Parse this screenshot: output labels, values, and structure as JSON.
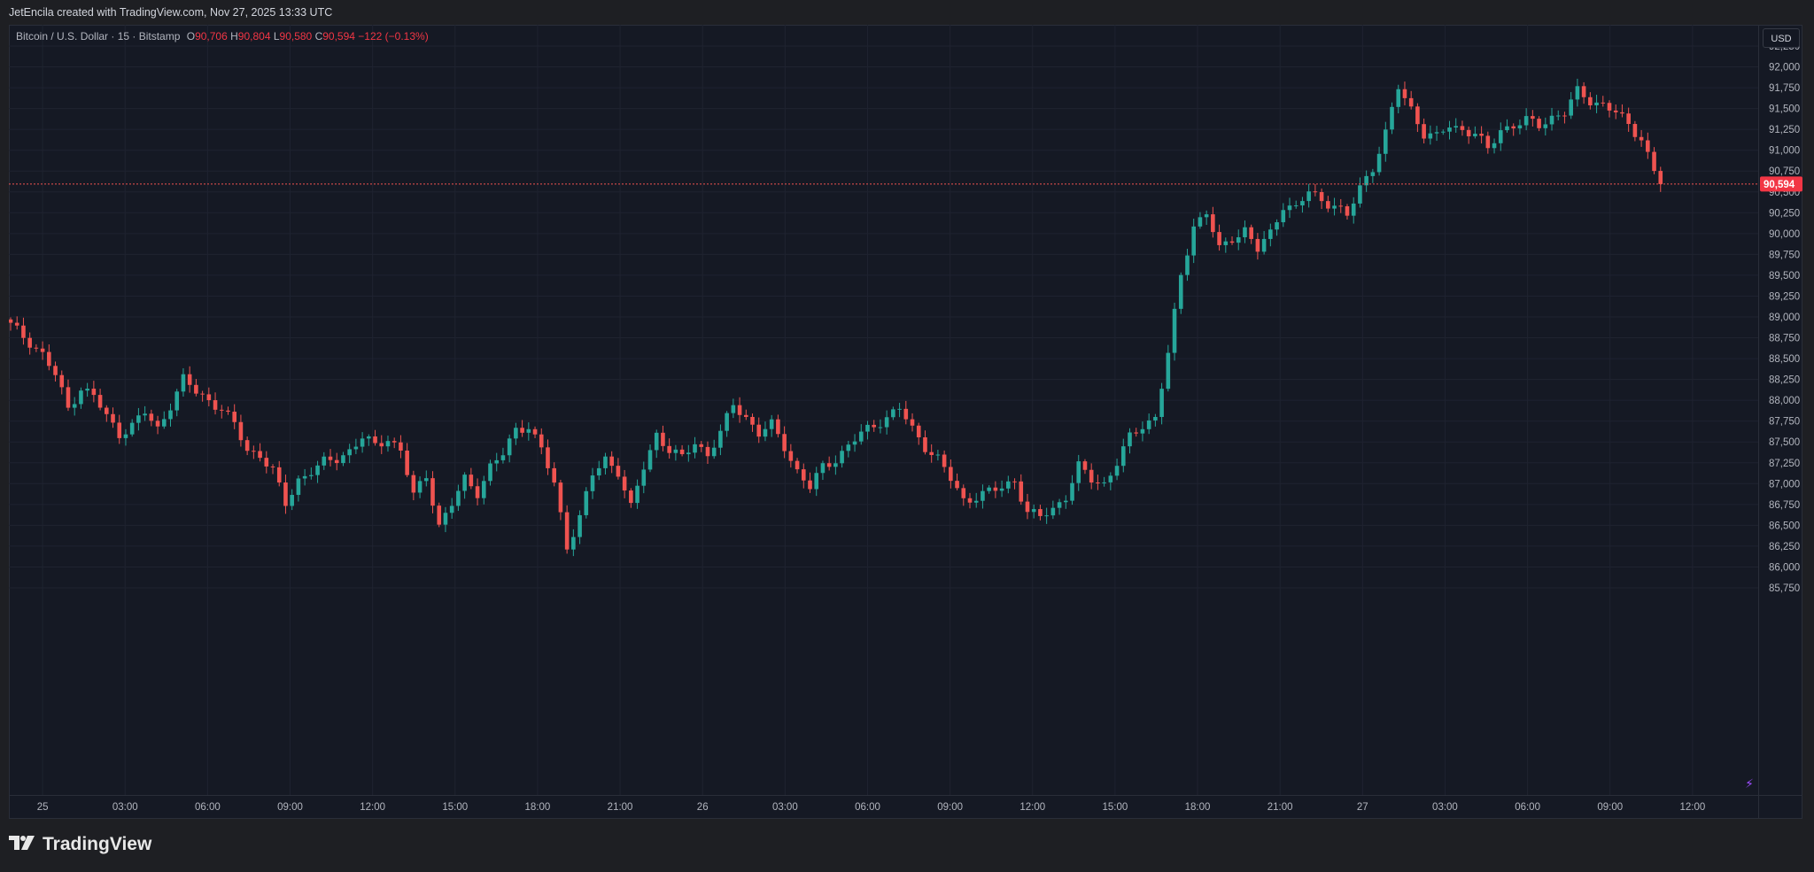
{
  "header": {
    "attribution": "JetEncila created with TradingView.com, Nov 27, 2025 13:33 UTC"
  },
  "legend": {
    "title": "Bitcoin / U.S. Dollar · 15 · Bitstamp",
    "open_k": "O",
    "open_v": "90,706",
    "high_k": "H",
    "high_v": "90,804",
    "low_k": "L",
    "low_v": "90,580",
    "close_k": "C",
    "close_v": "90,594",
    "change": "−122 (−0.13%)"
  },
  "currency_button": "USD",
  "footer": {
    "brand": "TradingView"
  },
  "colors": {
    "up": "#26a69a",
    "down": "#ef5350",
    "background": "#151924",
    "grid": "#222632",
    "price_tag": "#f23645"
  },
  "chart_data": {
    "type": "candlestick",
    "ylim": [
      85500,
      92500
    ],
    "y_ticks": [
      "85,750",
      "86,000",
      "86,250",
      "86,500",
      "86,750",
      "87,000",
      "87,250",
      "87,500",
      "87,750",
      "88,000",
      "88,250",
      "88,500",
      "88,750",
      "89,000",
      "89,250",
      "89,500",
      "89,750",
      "90,000",
      "90,250",
      "90,500",
      "90,750",
      "91,000",
      "91,250",
      "91,500",
      "91,750",
      "92,000",
      "92,250"
    ],
    "x_ticks": [
      "25",
      "03:00",
      "06:00",
      "09:00",
      "12:00",
      "15:00",
      "18:00",
      "21:00",
      "26",
      "03:00",
      "06:00",
      "09:00",
      "12:00",
      "15:00",
      "18:00",
      "21:00",
      "27",
      "03:00",
      "06:00",
      "09:00",
      "12:00"
    ],
    "last_price": "90,594",
    "last_price_value": 90594,
    "anchors": [
      [
        0,
        88900
      ],
      [
        3,
        88700
      ],
      [
        5,
        88550
      ],
      [
        7,
        88300
      ],
      [
        9,
        87900
      ],
      [
        11,
        88150
      ],
      [
        13,
        88050
      ],
      [
        15,
        87800
      ],
      [
        17,
        87600
      ],
      [
        19,
        87700
      ],
      [
        21,
        87850
      ],
      [
        23,
        87650
      ],
      [
        25,
        87950
      ],
      [
        27,
        88250
      ],
      [
        29,
        88100
      ],
      [
        31,
        88000
      ],
      [
        33,
        87900
      ],
      [
        35,
        87700
      ],
      [
        37,
        87400
      ],
      [
        39,
        87350
      ],
      [
        41,
        87150
      ],
      [
        43,
        86750
      ],
      [
        45,
        87050
      ],
      [
        47,
        87150
      ],
      [
        49,
        87250
      ],
      [
        51,
        87300
      ],
      [
        53,
        87400
      ],
      [
        55,
        87550
      ],
      [
        57,
        87450
      ],
      [
        59,
        87550
      ],
      [
        61,
        87400
      ],
      [
        63,
        86850
      ],
      [
        65,
        87100
      ],
      [
        67,
        86500
      ],
      [
        69,
        86750
      ],
      [
        71,
        87050
      ],
      [
        73,
        86900
      ],
      [
        75,
        87200
      ],
      [
        77,
        87350
      ],
      [
        79,
        87650
      ],
      [
        81,
        87700
      ],
      [
        83,
        87400
      ],
      [
        85,
        87000
      ],
      [
        87,
        86250
      ],
      [
        89,
        86600
      ],
      [
        91,
        87100
      ],
      [
        93,
        87300
      ],
      [
        95,
        87150
      ],
      [
        97,
        86700
      ],
      [
        99,
        87200
      ],
      [
        101,
        87600
      ],
      [
        103,
        87400
      ],
      [
        105,
        87300
      ],
      [
        107,
        87500
      ],
      [
        109,
        87350
      ],
      [
        111,
        87600
      ],
      [
        113,
        87950
      ],
      [
        115,
        87800
      ],
      [
        117,
        87600
      ],
      [
        119,
        87700
      ],
      [
        121,
        87450
      ],
      [
        123,
        87150
      ],
      [
        125,
        86950
      ],
      [
        127,
        87200
      ],
      [
        129,
        87300
      ],
      [
        131,
        87450
      ],
      [
        133,
        87600
      ],
      [
        135,
        87700
      ],
      [
        137,
        87800
      ],
      [
        139,
        87900
      ],
      [
        141,
        87650
      ],
      [
        143,
        87450
      ],
      [
        145,
        87300
      ],
      [
        147,
        87050
      ],
      [
        149,
        86800
      ],
      [
        151,
        86850
      ],
      [
        153,
        86900
      ],
      [
        155,
        86950
      ],
      [
        157,
        87050
      ],
      [
        159,
        86650
      ],
      [
        161,
        86600
      ],
      [
        163,
        86700
      ],
      [
        165,
        86850
      ],
      [
        167,
        87200
      ],
      [
        169,
        87050
      ],
      [
        171,
        87000
      ],
      [
        173,
        87250
      ],
      [
        175,
        87550
      ],
      [
        177,
        87700
      ],
      [
        179,
        87800
      ],
      [
        181,
        88550
      ],
      [
        183,
        89500
      ],
      [
        185,
        90100
      ],
      [
        187,
        90250
      ],
      [
        189,
        89800
      ],
      [
        191,
        89950
      ],
      [
        193,
        90050
      ],
      [
        195,
        89800
      ],
      [
        197,
        90000
      ],
      [
        199,
        90350
      ],
      [
        201,
        90300
      ],
      [
        203,
        90500
      ],
      [
        205,
        90400
      ],
      [
        207,
        90350
      ],
      [
        209,
        90200
      ],
      [
        211,
        90550
      ],
      [
        213,
        90800
      ],
      [
        215,
        91200
      ],
      [
        217,
        91750
      ],
      [
        219,
        91500
      ],
      [
        221,
        91200
      ],
      [
        223,
        91150
      ],
      [
        225,
        91300
      ],
      [
        227,
        91250
      ],
      [
        229,
        91200
      ],
      [
        231,
        91000
      ],
      [
        233,
        91250
      ],
      [
        235,
        91300
      ],
      [
        237,
        91350
      ],
      [
        239,
        91300
      ],
      [
        241,
        91400
      ],
      [
        243,
        91450
      ],
      [
        245,
        91700
      ],
      [
        247,
        91600
      ],
      [
        249,
        91550
      ],
      [
        251,
        91450
      ],
      [
        253,
        91300
      ],
      [
        255,
        91150
      ],
      [
        257,
        90750
      ],
      [
        258,
        90594
      ]
    ],
    "candle_count": 259
  }
}
